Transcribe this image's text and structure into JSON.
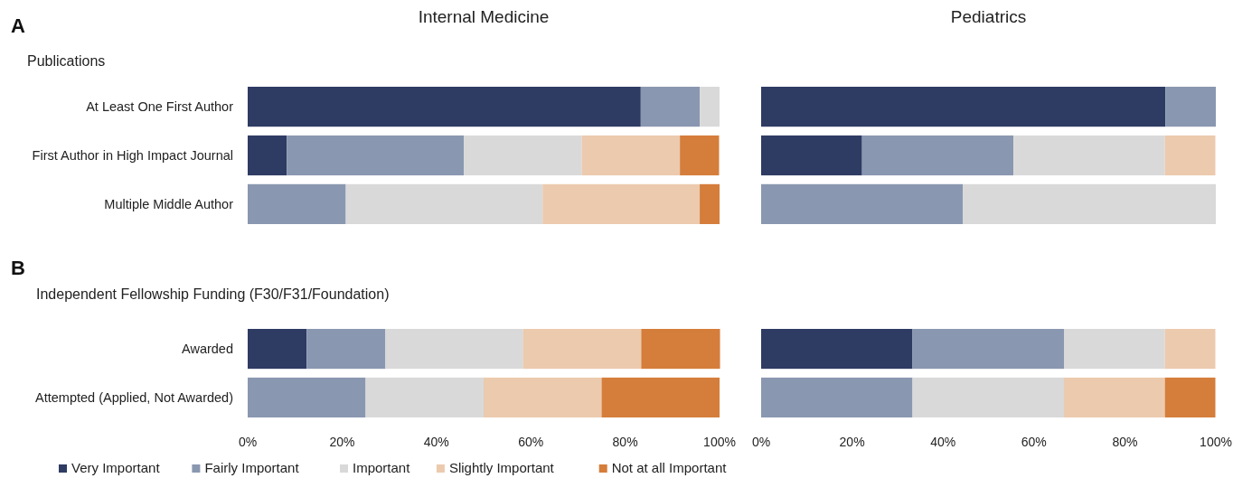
{
  "chart_data": [
    {
      "type": "bar",
      "orientation": "horizontal",
      "stacked": true,
      "title": "Internal Medicine",
      "subtitle": "Publications",
      "annotations": [
        "A"
      ],
      "categories": [
        "At Least One First Author",
        "First Author in High Impact Journal",
        "Multiple Middle Author"
      ],
      "xlim": [
        0,
        100
      ],
      "tick_labels": "y",
      "legend": "bottom",
      "series": [
        {
          "name": "Very Important",
          "color": "#2e3b63",
          "values": [
            83.3,
            8.3,
            0
          ]
        },
        {
          "name": "Fairly Important",
          "color": "#8a97b0",
          "values": [
            12.5,
            37.5,
            20.8
          ]
        },
        {
          "name": "Important",
          "color": "#d9d9d9",
          "values": [
            4.2,
            25,
            41.7
          ]
        },
        {
          "name": "Slightly Important",
          "color": "#eccaae",
          "values": [
            0,
            20.8,
            33.3
          ]
        },
        {
          "name": "Not at all Important",
          "color": "#d57d3b",
          "values": [
            0,
            8.3,
            4.2
          ]
        }
      ]
    },
    {
      "type": "bar",
      "orientation": "horizontal",
      "stacked": true,
      "title": "Pediatrics",
      "categories": [
        null,
        null,
        null
      ],
      "xlim": [
        0,
        100
      ],
      "tick_labels": false,
      "series": [
        {
          "color": "#2e3b63",
          "values": [
            88.9,
            22.2,
            0
          ]
        },
        {
          "color": "#8a97b0",
          "values": [
            11.1,
            33.3,
            44.4
          ]
        },
        {
          "color": "#d9d9d9",
          "values": [
            0,
            33.3,
            55.6
          ]
        },
        {
          "color": "#eccaae",
          "values": [
            0,
            11.1,
            0
          ]
        },
        {
          "color": "#d57d3b",
          "values": [
            0,
            0,
            0
          ]
        }
      ]
    },
    {
      "type": "bar",
      "orientation": "horizontal",
      "stacked": true,
      "subtitle": "Independent Fellowship Funding (F30/F31/Foundation)",
      "annotations": [
        "B"
      ],
      "categories": [
        "Awarded",
        "Attempted (Applied, Not Awarded)"
      ],
      "xlim": [
        0,
        100
      ],
      "xticks": [
        {
          "value": 0,
          "label": "0%"
        },
        {
          "value": 20,
          "label": "20%"
        },
        {
          "value": 40,
          "label": "40%"
        },
        {
          "value": 60,
          "label": "60%"
        },
        {
          "value": 80,
          "label": "80%"
        },
        {
          "value": 100,
          "label": "100%"
        }
      ],
      "series": [
        {
          "color": "#2e3b63",
          "values": [
            12.5,
            0
          ]
        },
        {
          "color": "#8a97b0",
          "values": [
            16.7,
            25
          ]
        },
        {
          "color": "#d9d9d9",
          "values": [
            29.2,
            25
          ]
        },
        {
          "color": "#eccaae",
          "values": [
            25,
            25
          ]
        },
        {
          "color": "#d57d3b",
          "values": [
            16.7,
            25
          ]
        }
      ]
    },
    {
      "type": "bar",
      "orientation": "horizontal",
      "stacked": true,
      "categories": [
        null,
        null
      ],
      "xlim": [
        0,
        100
      ],
      "xticks": [
        {
          "value": 0,
          "label": "0%"
        },
        {
          "value": 20,
          "label": "20%"
        },
        {
          "value": 40,
          "label": "40%"
        },
        {
          "value": 60,
          "label": "60%"
        },
        {
          "value": 80,
          "label": "80%"
        },
        {
          "value": 100,
          "label": "100%"
        }
      ],
      "tick_labels": "x",
      "series": [
        {
          "color": "#2e3b63",
          "values": [
            33.3,
            0
          ]
        },
        {
          "color": "#8a97b0",
          "values": [
            33.3,
            33.3
          ]
        },
        {
          "color": "#d9d9d9",
          "values": [
            22.2,
            33.3
          ]
        },
        {
          "color": "#eccaae",
          "values": [
            11.1,
            22.2
          ]
        },
        {
          "color": "#d57d3b",
          "values": [
            0,
            11.1
          ]
        }
      ]
    }
  ]
}
